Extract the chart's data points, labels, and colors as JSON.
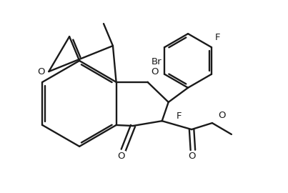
{
  "bg": "#ffffff",
  "lc": "#1a1a1a",
  "lw": 1.7,
  "fs": 9.5,
  "figw": 4.03,
  "figh": 2.7,
  "dpi": 100,
  "xlim": [
    0,
    10.5
  ],
  "ylim": [
    0,
    7.5
  ]
}
